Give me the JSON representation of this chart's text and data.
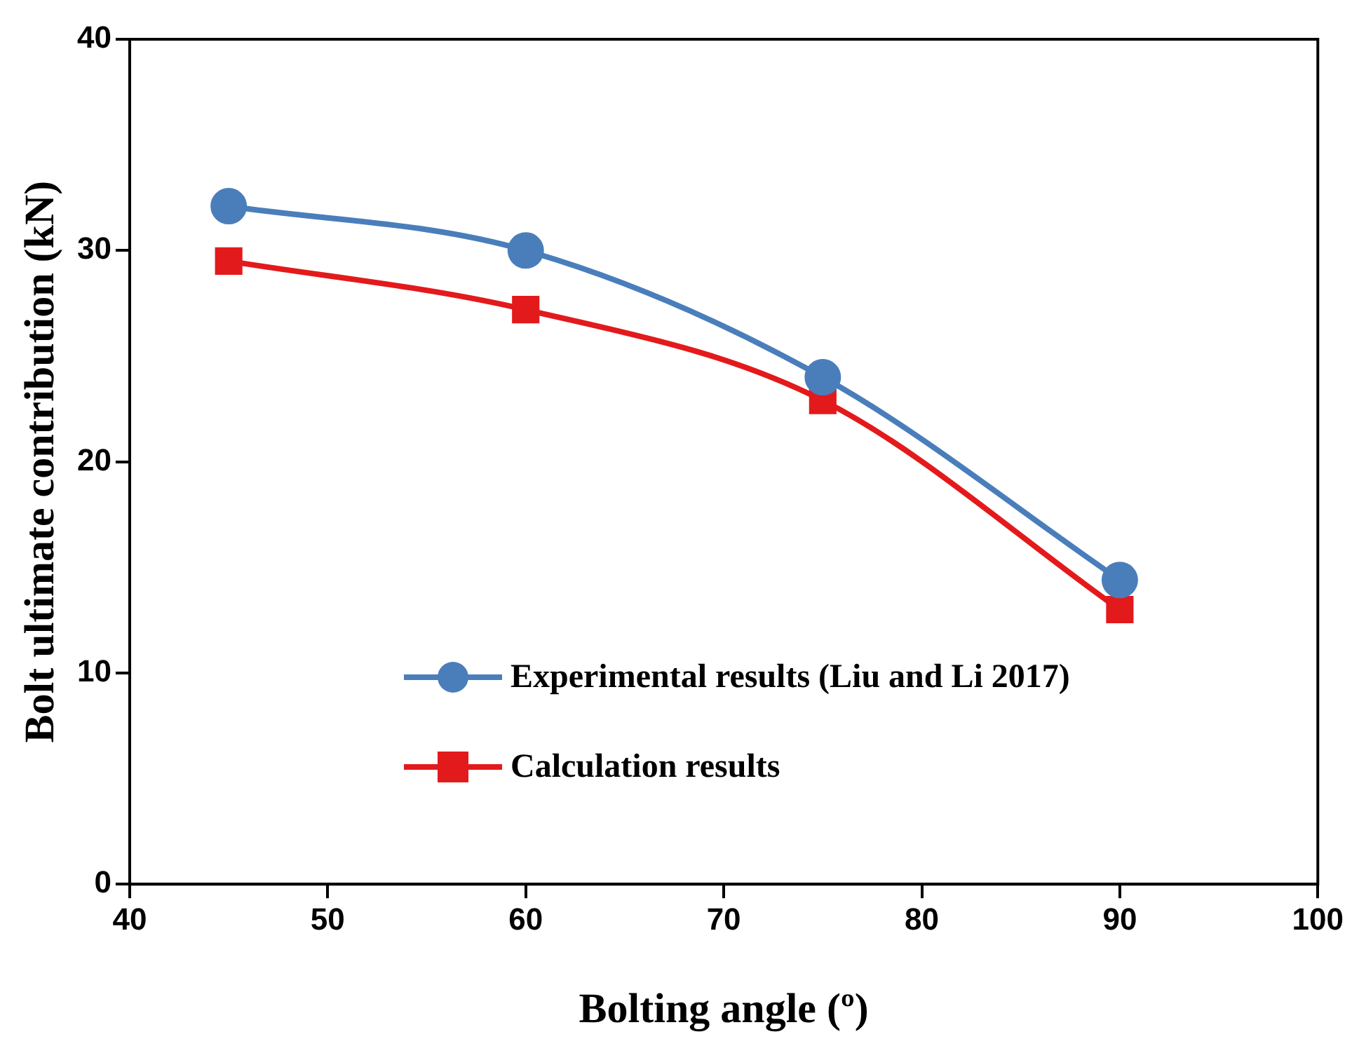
{
  "chart_data": {
    "type": "line",
    "xlabel": "Bolting angle (º)",
    "ylabel": "Bolt ultimate contribution (kN)",
    "x": [
      45,
      60,
      75,
      90
    ],
    "series": [
      {
        "name": "Experimental results (Liu and Li 2017)",
        "color": "#4a7ebb",
        "marker": "circle",
        "values": [
          32.1,
          30.0,
          24.0,
          14.4
        ]
      },
      {
        "name": "Calculation results",
        "color": "#e31a1c",
        "marker": "square",
        "values": [
          29.5,
          27.2,
          22.9,
          13.0
        ]
      }
    ],
    "xlim": [
      40,
      100
    ],
    "xticks": [
      40,
      50,
      60,
      70,
      80,
      90,
      100
    ],
    "ylim": [
      0,
      40
    ],
    "yticks": [
      0,
      10,
      20,
      30,
      40
    ],
    "grid": false,
    "legend": "bottom"
  }
}
